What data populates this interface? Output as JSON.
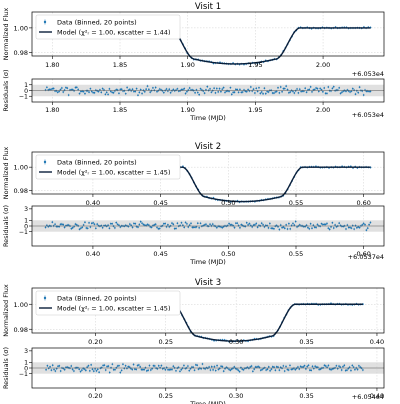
{
  "colors": {
    "data": "#1f77b4",
    "model": "#0a1f3a",
    "band": "#e0e0e0",
    "grid": "#d0d0d0"
  },
  "labels": {
    "flux_ylabel": "Normalized Flux",
    "resid_ylabel": "Residuals (σ)",
    "xlabel": "Time (MJD)",
    "legend_data": "Data (Binned, 20 points)"
  },
  "chart_data": [
    {
      "type": "line",
      "title": "Visit 1",
      "offset_label": "+6.053e4",
      "model_legend": "Model (χ²ᵣ = 1.00, κscatter = 1.44)",
      "xlim": [
        1.785,
        2.045
      ],
      "xticks": [
        1.8,
        1.85,
        1.9,
        1.95,
        2.0
      ],
      "xtick_labels": [
        "1.80",
        "1.85",
        "1.90",
        "1.95",
        "2.00"
      ],
      "x_data": [
        1.795,
        2.035
      ],
      "transit": {
        "t1": 1.887,
        "t2": 1.905,
        "t3": 1.965,
        "t4": 1.983,
        "depth": 0.0255,
        "curve": 0.004
      },
      "flux_ylim": [
        0.977,
        1.013
      ],
      "flux_yticks": [
        0.98,
        1.0
      ],
      "flux_ytick_labels": [
        "0.98",
        "1.00"
      ],
      "resid_ylim": [
        -2,
        2
      ],
      "resid_yticks": [
        -1,
        0,
        1
      ],
      "resid_ytick_labels": [
        "−1",
        "0",
        "1"
      ]
    },
    {
      "type": "line",
      "title": "Visit 2",
      "offset_label": "+6.0537e4",
      "model_legend": "Model (χ²ᵣ = 1.00, κscatter = 1.45)",
      "xlim": [
        0.355,
        0.615
      ],
      "xticks": [
        0.4,
        0.45,
        0.5,
        0.55,
        0.6
      ],
      "xtick_labels": [
        "0.40",
        "0.45",
        "0.50",
        "0.55",
        "0.60"
      ],
      "x_data": [
        0.365,
        0.605
      ],
      "transit": {
        "t1": 0.466,
        "t2": 0.483,
        "t3": 0.538,
        "t4": 0.555,
        "depth": 0.0255,
        "curve": 0.004
      },
      "flux_ylim": [
        0.977,
        1.013
      ],
      "flux_yticks": [
        0.98,
        1.0
      ],
      "flux_ytick_labels": [
        "0.98",
        "1.00"
      ],
      "resid_ylim": [
        -3.5,
        3.5
      ],
      "resid_yticks": [
        -1,
        0,
        1,
        3
      ],
      "resid_ytick_labels": [
        "−1",
        "0",
        "1",
        "3"
      ]
    },
    {
      "type": "line",
      "title": "Visit 3",
      "offset_label": "+6.054e4",
      "model_legend": "Model (χ²ᵣ = 1.00, κscatter = 1.45)",
      "xlim": [
        0.155,
        0.405
      ],
      "xticks": [
        0.2,
        0.25,
        0.3,
        0.35,
        0.4
      ],
      "xtick_labels": [
        "0.20",
        "0.25",
        "0.30",
        "0.35",
        "0.40"
      ],
      "x_data": [
        0.165,
        0.39
      ],
      "transit": {
        "t1": 0.255,
        "t2": 0.272,
        "t3": 0.325,
        "t4": 0.342,
        "depth": 0.0255,
        "curve": 0.004
      },
      "flux_ylim": [
        0.977,
        1.013
      ],
      "flux_yticks": [
        0.98,
        1.0
      ],
      "flux_ytick_labels": [
        "0.98",
        "1.00"
      ],
      "resid_ylim": [
        -3.5,
        3.5
      ],
      "resid_yticks": [
        -1,
        0,
        1,
        3
      ],
      "resid_ytick_labels": [
        "−1",
        "0",
        "1",
        "3"
      ]
    }
  ]
}
